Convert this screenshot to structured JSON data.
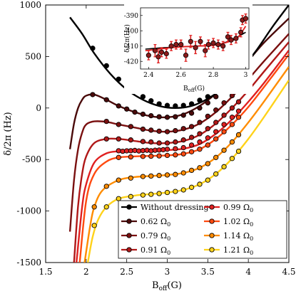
{
  "chart_data": [
    {
      "type": "line",
      "title": "",
      "xlabel_main": "B",
      "xlabel_sub": "off",
      "xlabel_tail": "(G)",
      "ylabel": "δ/2π (Hz)",
      "xlim": [
        1.5,
        4.5
      ],
      "ylim": [
        -1500,
        1000
      ],
      "xticks": [
        1.5,
        2,
        2.5,
        3,
        3.5,
        4,
        4.5
      ],
      "xtick_labels": [
        "1.5",
        "2",
        "2.5",
        "3",
        "3.5",
        "4",
        "4.5"
      ],
      "yticks": [
        -1500,
        -1000,
        -500,
        0,
        500,
        1000
      ],
      "ytick_labels": [
        "-1500",
        "-1000",
        "-500",
        "0",
        "500",
        "1000"
      ],
      "grid": false,
      "legend_position": "bottom-right",
      "legend_columns": 2,
      "series": [
        {
          "name": "Without dressing",
          "color": "#000000",
          "curve": {
            "x": [
              1.8,
              1.95,
              2.1,
              2.3,
              2.5,
              2.7,
              2.9,
              3.1,
              3.3,
              3.5,
              3.7,
              3.9,
              4.1,
              4.3,
              4.5
            ],
            "y": [
              880,
              720,
              530,
              330,
              180,
              80,
              20,
              0,
              20,
              90,
              200,
              360,
              560,
              790,
              1000
            ]
          },
          "points": {
            "x": [
              2.08,
              2.25,
              2.4,
              2.55,
              2.7,
              2.8,
              2.9,
              3.0,
              3.1,
              3.2,
              3.3,
              3.4,
              3.5,
              3.6,
              3.7,
              3.8,
              3.88
            ],
            "y": [
              580,
              410,
              280,
              180,
              110,
              70,
              40,
              25,
              20,
              25,
              40,
              75,
              110,
              160,
              220,
              280,
              340
            ]
          }
        },
        {
          "name": "0.62 Ω",
          "sub": "0",
          "color": "#4a0a0a",
          "curve": {
            "x": [
              1.8,
              1.85,
              1.9,
              1.95,
              2.0,
              2.1,
              2.25,
              2.4,
              2.6,
              2.8,
              3.0,
              3.2,
              3.4,
              3.6,
              3.8,
              4.0,
              4.2,
              4.5
            ],
            "y": [
              -400,
              -150,
              0,
              80,
              120,
              130,
              80,
              20,
              -40,
              -80,
              -90,
              -60,
              20,
              140,
              290,
              460,
              640,
              870
            ]
          },
          "points": {
            "x": [
              2.08,
              2.25,
              2.4,
              2.5,
              2.6,
              2.7,
              2.8,
              2.9,
              3.0,
              3.1,
              3.2,
              3.3,
              3.4,
              3.5,
              3.6,
              3.7,
              3.8,
              3.88
            ],
            "y": [
              130,
              80,
              20,
              -10,
              -40,
              -60,
              -75,
              -85,
              -90,
              -85,
              -70,
              -50,
              0,
              50,
              110,
              170,
              240,
              300
            ]
          }
        },
        {
          "name": "0.79 Ω",
          "sub": "0",
          "color": "#7a1010",
          "curve": {
            "x": [
              1.8,
              1.85,
              1.9,
              1.95,
              2.0,
              2.1,
              2.25,
              2.4,
              2.6,
              2.8,
              3.0,
              3.2,
              3.4,
              3.6,
              3.8,
              4.0,
              4.2,
              4.5
            ],
            "y": [
              -1200,
              -700,
              -400,
              -240,
              -160,
              -130,
              -135,
              -160,
              -190,
              -220,
              -230,
              -210,
              -150,
              -40,
              110,
              280,
              460,
              720
            ]
          },
          "points": {
            "x": [
              2.25,
              2.4,
              2.55,
              2.7,
              2.8,
              2.9,
              3.0,
              3.1,
              3.2,
              3.3,
              3.4,
              3.5,
              3.6,
              3.7,
              3.8,
              3.88
            ],
            "y": [
              -130,
              -160,
              -180,
              -205,
              -215,
              -225,
              -230,
              -220,
              -200,
              -180,
              -140,
              -80,
              -20,
              50,
              120,
              190
            ]
          }
        },
        {
          "name": "0.91 Ω",
          "sub": "0",
          "color": "#b01818",
          "curve": {
            "x": [
              1.85,
              1.9,
              1.95,
              2.0,
              2.1,
              2.25,
              2.4,
              2.6,
              2.8,
              3.0,
              3.2,
              3.4,
              3.6,
              3.8,
              4.0,
              4.2,
              4.5
            ],
            "y": [
              -1500,
              -950,
              -640,
              -470,
              -340,
              -300,
              -300,
              -320,
              -340,
              -340,
              -320,
              -260,
              -150,
              0,
              170,
              360,
              640
            ]
          },
          "points": {
            "x": [
              2.25,
              2.4,
              2.55,
              2.7,
              2.8,
              2.9,
              3.0,
              3.1,
              3.2,
              3.3,
              3.4,
              3.5,
              3.6,
              3.7,
              3.8,
              3.88
            ],
            "y": [
              -300,
              -300,
              -310,
              -325,
              -330,
              -340,
              -340,
              -330,
              -310,
              -285,
              -250,
              -200,
              -140,
              -70,
              0,
              60
            ]
          }
        },
        {
          "name": "0.99 Ω",
          "sub": "0",
          "color": "#e02020",
          "curve": {
            "x": [
              1.88,
              1.95,
              2.0,
              2.1,
              2.25,
              2.4,
              2.6,
              2.8,
              3.0,
              3.2,
              3.4,
              3.6,
              3.8,
              4.0,
              4.2,
              4.5
            ],
            "y": [
              -1500,
              -960,
              -740,
              -530,
              -440,
              -420,
              -415,
              -412,
              -408,
              -395,
              -350,
              -250,
              -110,
              60,
              250,
              560
            ]
          },
          "points": {
            "x": [
              2.4,
              2.45,
              2.5,
              2.55,
              2.6,
              2.65,
              2.7,
              2.75,
              2.8,
              2.85,
              2.9,
              2.95,
              3.0,
              3.1,
              3.2,
              3.3,
              3.4,
              3.5,
              3.6,
              3.7,
              3.8,
              3.88
            ],
            "y": [
              -415,
              -420,
              -416,
              -415,
              -412,
              -417,
              -413,
              -410,
              -415,
              -410,
              -408,
              -405,
              -400,
              -395,
              -385,
              -360,
              -330,
              -290,
              -230,
              -160,
              -90,
              -30
            ]
          }
        },
        {
          "name": "1.02 Ω",
          "sub": "0",
          "color": "#ff4a10",
          "curve": {
            "x": [
              1.92,
              2.0,
              2.1,
              2.25,
              2.4,
              2.6,
              2.8,
              3.0,
              3.2,
              3.4,
              3.6,
              3.8,
              4.0,
              4.2,
              4.5
            ],
            "y": [
              -1500,
              -900,
              -640,
              -520,
              -480,
              -470,
              -465,
              -460,
              -445,
              -400,
              -300,
              -160,
              10,
              210,
              520
            ]
          },
          "points": {
            "x": [
              2.4,
              2.55,
              2.7,
              2.8,
              2.9,
              3.0,
              3.1,
              3.2,
              3.3,
              3.4,
              3.5,
              3.6,
              3.7,
              3.8,
              3.88
            ],
            "y": [
              -480,
              -475,
              -470,
              -468,
              -465,
              -460,
              -455,
              -445,
              -425,
              -400,
              -360,
              -300,
              -230,
              -160,
              -90
            ]
          }
        },
        {
          "name": "1.14 Ω",
          "sub": "0",
          "color": "#ff8c00",
          "curve": {
            "x": [
              1.98,
              2.05,
              2.1,
              2.2,
              2.4,
              2.6,
              2.8,
              3.0,
              3.2,
              3.4,
              3.6,
              3.8,
              4.0,
              4.2,
              4.5
            ],
            "y": [
              -1500,
              -1140,
              -960,
              -800,
              -700,
              -670,
              -660,
              -650,
              -630,
              -580,
              -480,
              -330,
              -140,
              70,
              400
            ]
          },
          "points": {
            "x": [
              2.1,
              2.25,
              2.4,
              2.55,
              2.7,
              2.8,
              2.9,
              3.0,
              3.1,
              3.2,
              3.3,
              3.4,
              3.5,
              3.6,
              3.7,
              3.8,
              3.88
            ],
            "y": [
              -960,
              -760,
              -700,
              -680,
              -665,
              -660,
              -655,
              -650,
              -645,
              -630,
              -605,
              -580,
              -540,
              -480,
              -410,
              -330,
              -260
            ]
          }
        },
        {
          "name": "1.21 Ω",
          "sub": "0",
          "color": "#ffd21a",
          "curve": {
            "x": [
              2.02,
              2.08,
              2.15,
              2.25,
              2.4,
              2.6,
              2.8,
              3.0,
              3.2,
              3.4,
              3.6,
              3.8,
              4.0,
              4.2,
              4.5
            ],
            "y": [
              -1500,
              -1250,
              -1080,
              -960,
              -880,
              -850,
              -835,
              -820,
              -795,
              -740,
              -640,
              -490,
              -300,
              -80,
              270
            ]
          },
          "points": {
            "x": [
              2.1,
              2.25,
              2.4,
              2.55,
              2.7,
              2.8,
              2.9,
              3.0,
              3.1,
              3.2,
              3.3,
              3.4,
              3.5,
              3.6,
              3.7,
              3.8,
              3.88
            ],
            "y": [
              -1140,
              -960,
              -880,
              -860,
              -845,
              -838,
              -830,
              -820,
              -810,
              -795,
              -770,
              -740,
              -700,
              -640,
              -570,
              -490,
              -420
            ]
          }
        }
      ]
    },
    {
      "type": "scatter",
      "title": "",
      "xlabel_main": "B",
      "xlabel_sub": "off",
      "xlabel_tail": "(G)",
      "ylabel": "δ/2π(Hz)",
      "xlim": [
        2.35,
        3.02
      ],
      "ylim": [
        -425,
        -385
      ],
      "xticks": [
        2.4,
        2.6,
        2.8,
        3.0
      ],
      "xtick_labels": [
        "2.4",
        "2.6",
        "2.8",
        "3"
      ],
      "yticks": [
        -420,
        -410,
        -400,
        -390
      ],
      "ytick_labels": [
        "-420",
        "-410",
        "-400",
        "-390"
      ],
      "grid": false,
      "series": [
        {
          "color": "#e02020",
          "x": [
            2.4,
            2.44,
            2.46,
            2.48,
            2.51,
            2.54,
            2.57,
            2.6,
            2.63,
            2.66,
            2.69,
            2.72,
            2.75,
            2.77,
            2.8,
            2.83,
            2.86,
            2.89,
            2.91,
            2.94,
            2.97,
            2.98,
            3.0
          ],
          "y": [
            -416,
            -413,
            -417,
            -414,
            -415,
            -410,
            -409,
            -409,
            -416,
            -407,
            -411,
            -407,
            -413,
            -409,
            -408,
            -409,
            -410,
            -404,
            -406,
            -405,
            -401,
            -393,
            -392
          ],
          "err": [
            3,
            4,
            4,
            3,
            3,
            3,
            3,
            3,
            4,
            4,
            4,
            3,
            4,
            3,
            3,
            3,
            3,
            3,
            3,
            3,
            3,
            3,
            3
          ],
          "fit": {
            "x": [
              2.38,
              2.5,
              2.6,
              2.7,
              2.8,
              2.85,
              2.9,
              2.95,
              3.0
            ],
            "y": [
              -412,
              -411,
              -410.5,
              -410,
              -409.5,
              -408.5,
              -406.5,
              -404,
              -401
            ]
          },
          "model": {
            "x": [
              2.38,
              2.5,
              2.6,
              2.7,
              2.8,
              2.85,
              2.9,
              2.95,
              3.0
            ],
            "y": [
              -413,
              -411.5,
              -410.5,
              -410,
              -409.5,
              -408.5,
              -407,
              -404.5,
              -397
            ]
          }
        }
      ]
    }
  ]
}
